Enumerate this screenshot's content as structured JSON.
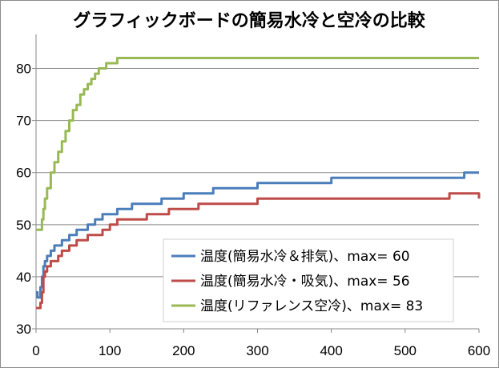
{
  "chart_data": {
    "type": "line",
    "title": "グラフィックボードの簡易水冷と空冷の比較",
    "xlabel": "",
    "ylabel": "",
    "xlim": [
      0,
      600
    ],
    "ylim": [
      30,
      85
    ],
    "x_ticks": [
      0,
      100,
      200,
      300,
      400,
      500,
      600
    ],
    "y_ticks": [
      30,
      40,
      50,
      60,
      70,
      80
    ],
    "grid": true,
    "legend_position": "bottom-right",
    "series": [
      {
        "name": "温度(簡易水冷＆排気)、max= 60",
        "color": "#4a7ebb",
        "x": [
          0,
          2,
          4,
          6,
          8,
          10,
          12,
          15,
          20,
          25,
          30,
          35,
          40,
          45,
          50,
          55,
          60,
          70,
          80,
          90,
          100,
          110,
          130,
          150,
          170,
          180,
          200,
          220,
          240,
          260,
          280,
          300,
          320,
          340,
          360,
          380,
          400,
          420,
          440,
          460,
          480,
          500,
          520,
          540,
          560,
          580,
          600
        ],
        "values": [
          37,
          36,
          36,
          38,
          40,
          42,
          43,
          44,
          45,
          46,
          46,
          47,
          47,
          48,
          48,
          49,
          49,
          50,
          51,
          52,
          52,
          53,
          54,
          54,
          55,
          55,
          56,
          56,
          57,
          57,
          57,
          58,
          58,
          58,
          58,
          58,
          59,
          59,
          59,
          59,
          59,
          59,
          59,
          59,
          59,
          60,
          60
        ]
      },
      {
        "name": "温度(簡易水冷・吸気)、max= 56",
        "color": "#be4b48",
        "x": [
          0,
          2,
          4,
          6,
          8,
          10,
          12,
          15,
          20,
          25,
          30,
          35,
          40,
          45,
          50,
          55,
          60,
          70,
          80,
          90,
          100,
          110,
          130,
          150,
          170,
          180,
          200,
          220,
          240,
          260,
          280,
          300,
          320,
          340,
          360,
          380,
          400,
          420,
          440,
          460,
          480,
          500,
          520,
          540,
          560,
          580,
          600
        ],
        "values": [
          34,
          34,
          34,
          35,
          37,
          40,
          41,
          42,
          43,
          43,
          44,
          45,
          45,
          46,
          46,
          47,
          47,
          48,
          48,
          49,
          50,
          51,
          51,
          52,
          52,
          53,
          53,
          54,
          54,
          54,
          54,
          55,
          55,
          55,
          55,
          55,
          55,
          55,
          55,
          55,
          55,
          55,
          55,
          55,
          56,
          56,
          55
        ]
      },
      {
        "name": "温度(リファレンス空冷)、max= 83",
        "color": "#98b954",
        "x": [
          0,
          2,
          4,
          6,
          8,
          10,
          12,
          15,
          20,
          25,
          30,
          35,
          40,
          45,
          50,
          55,
          60,
          65,
          70,
          75,
          80,
          85,
          90,
          95,
          100,
          105,
          110,
          130,
          150,
          170,
          180,
          200,
          220,
          240,
          260,
          280,
          300,
          320,
          340,
          360,
          380,
          400,
          420,
          440,
          460,
          480,
          500,
          520,
          540,
          560,
          580,
          600
        ],
        "values": [
          49,
          49,
          49,
          49,
          51,
          53,
          55,
          57,
          60,
          62,
          64,
          66,
          68,
          70,
          72,
          73,
          75,
          76,
          77,
          78,
          79,
          80,
          80,
          81,
          81,
          81,
          82,
          82,
          82,
          82,
          82,
          82,
          82,
          82,
          82,
          82,
          82,
          82,
          82,
          82,
          82,
          82,
          82,
          82,
          82,
          82,
          82,
          82,
          82,
          82,
          82,
          82
        ]
      }
    ]
  }
}
